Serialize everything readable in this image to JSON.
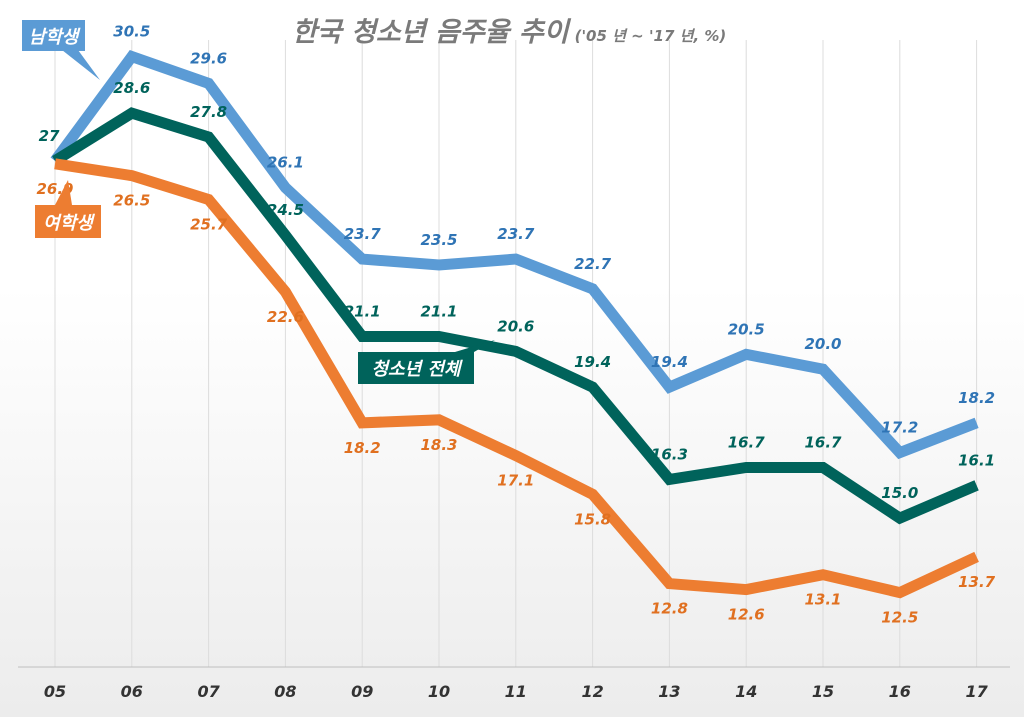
{
  "chart_data": {
    "type": "line",
    "title": "한국 청소년 음주율 추이",
    "subtitle": "('05 년 ~ '17 년, %)",
    "categories": [
      "05",
      "06",
      "07",
      "08",
      "09",
      "10",
      "11",
      "12",
      "13",
      "14",
      "15",
      "16",
      "17"
    ],
    "ylim": [
      10,
      32.4
    ],
    "grid": "vertical",
    "series": [
      {
        "name": "남학생",
        "color": "#5b9bd5",
        "label_color": "#2f74b5",
        "values": [
          27.0,
          30.5,
          29.6,
          26.1,
          23.7,
          23.5,
          23.7,
          22.7,
          19.4,
          20.5,
          20.0,
          17.2,
          18.2
        ],
        "labels": [
          "",
          "30.5",
          "29.6",
          "26.1",
          "23.7",
          "23.5",
          "23.7",
          "22.7",
          "19.4",
          "20.5",
          "20.0",
          "17.2",
          "18.2"
        ]
      },
      {
        "name": "청소년 전체",
        "color": "#00635b",
        "label_color": "#00635b",
        "values": [
          27.0,
          28.6,
          27.8,
          24.5,
          21.1,
          21.1,
          20.6,
          19.4,
          16.3,
          16.7,
          16.7,
          15.0,
          16.1
        ],
        "labels": [
          "27",
          "28.6",
          "27.8",
          "24.5",
          "21.1",
          "21.1",
          "20.6",
          "19.4",
          "16.3",
          "16.7",
          "16.7",
          "15.0",
          "16.1"
        ]
      },
      {
        "name": "여학생",
        "color": "#ed7d31",
        "label_color": "#e07020",
        "values": [
          26.9,
          26.5,
          25.7,
          22.6,
          18.2,
          18.3,
          17.1,
          15.8,
          12.8,
          12.6,
          13.1,
          12.5,
          13.7
        ],
        "labels": [
          "26.9",
          "26.5",
          "25.7",
          "22.6",
          "18.2",
          "18.3",
          "17.1",
          "15.8",
          "12.8",
          "12.6",
          "13.1",
          "12.5",
          "13.7"
        ]
      }
    ]
  }
}
